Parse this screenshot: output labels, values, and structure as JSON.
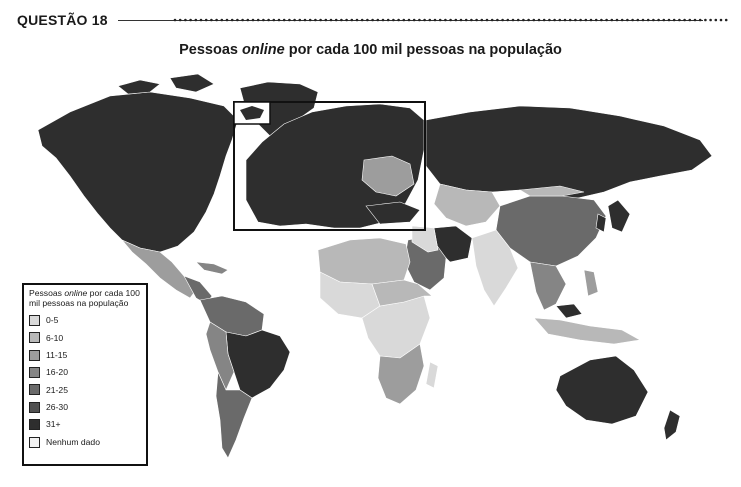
{
  "header": {
    "question": "QUESTÃO 18"
  },
  "title": {
    "prefix": "Pessoas ",
    "emph": "online",
    "suffix": " por cada 100 mil pessoas na população"
  },
  "legend": {
    "title_prefix": "Pessoas ",
    "title_emph": "online",
    "title_suffix": " por cada 100 mil pessoas na população",
    "items": [
      {
        "label": "0-5",
        "color": "#d9d9d9"
      },
      {
        "label": "6-10",
        "color": "#b8b8b8"
      },
      {
        "label": "11-15",
        "color": "#9d9d9d"
      },
      {
        "label": "16-20",
        "color": "#858585"
      },
      {
        "label": "21-25",
        "color": "#6a6a6a"
      },
      {
        "label": "26-30",
        "color": "#515151"
      },
      {
        "label": "31+",
        "color": "#2e2e2e"
      },
      {
        "label": "Nenhum dado",
        "color": "#f2f2f2"
      }
    ]
  }
}
